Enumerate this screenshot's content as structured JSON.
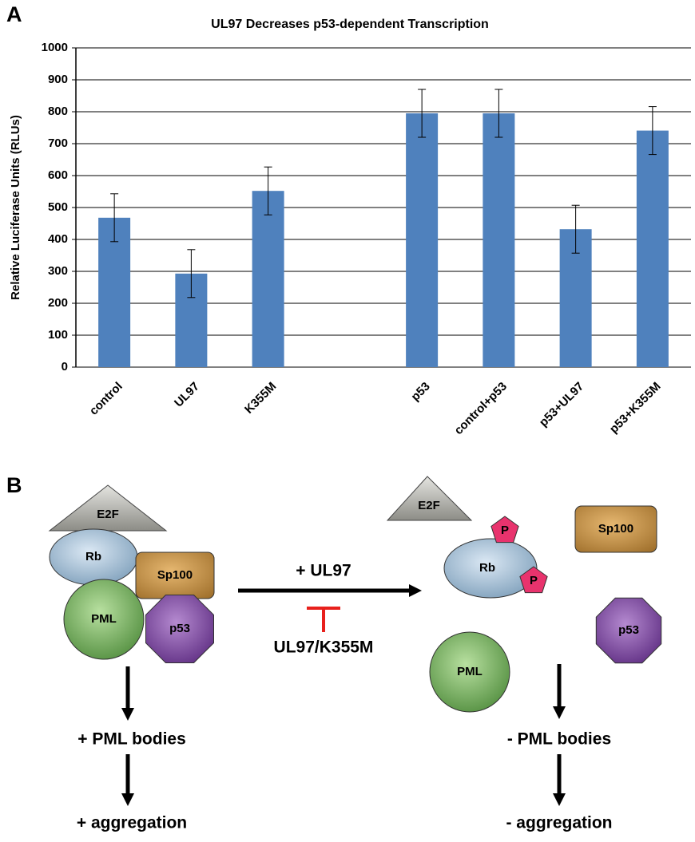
{
  "panel_labels": [
    "A",
    "B"
  ],
  "chart_data": {
    "type": "bar",
    "title": "UL97 Decreases p53-dependent Transcription",
    "y_label": "Relative Luciferase Units (RLUs)",
    "categories": [
      "control",
      "UL97",
      "K355M",
      null,
      "p53",
      "control+p53",
      "p53+UL97",
      "p53+K355M"
    ],
    "values": [
      468,
      293,
      552,
      null,
      795,
      795,
      432,
      741
    ],
    "errors": [
      75,
      75,
      75,
      null,
      75,
      75,
      75,
      75
    ],
    "color": "#4f81bd",
    "ylim": [
      0,
      1000
    ],
    "yticks": [
      0,
      100,
      200,
      300,
      400,
      500,
      600,
      700,
      800,
      900,
      1000
    ],
    "grid": true
  },
  "diagram": {
    "before": {
      "e2f": "E2F",
      "rb": "Rb",
      "sp100": "Sp100",
      "pml": "PML",
      "p53": "p53",
      "outcome": "+ PML bodies",
      "result": "+ aggregation"
    },
    "arrow_label": "+ UL97",
    "inhibitor_label": "UL97/K355M",
    "after": {
      "e2f": "E2F",
      "phospho": [
        "P",
        "P"
      ],
      "rb": "Rb",
      "sp100": "Sp100",
      "pml": "PML",
      "p53": "p53",
      "outcome": "- PML bodies",
      "result": "- aggregation"
    }
  }
}
